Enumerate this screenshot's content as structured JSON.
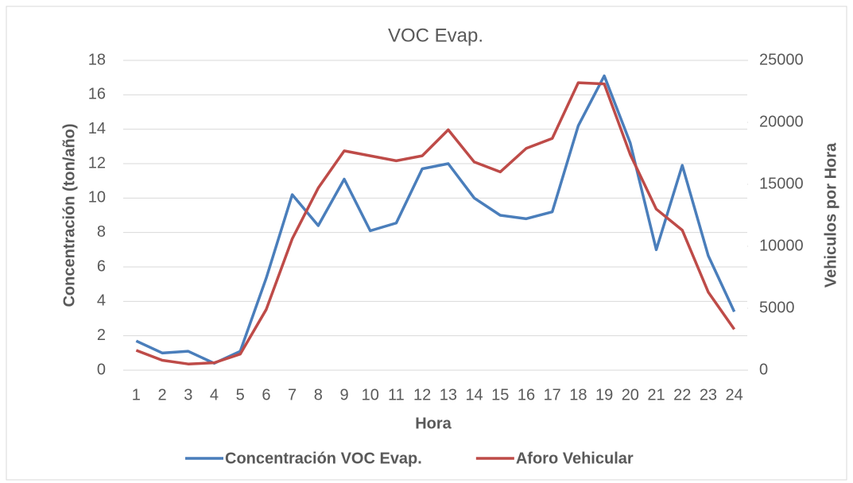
{
  "chart_data": {
    "type": "line",
    "title": "VOC Evap.",
    "x_label": "Hora",
    "y_label": "Concentración (ton/año)",
    "y2_label": "Vehiculos por Hora",
    "categories": [
      "1",
      "2",
      "3",
      "4",
      "5",
      "6",
      "7",
      "8",
      "9",
      "10",
      "11",
      "12",
      "13",
      "14",
      "15",
      "16",
      "17",
      "18",
      "19",
      "20",
      "21",
      "22",
      "23",
      "24"
    ],
    "series": [
      {
        "name": "Concentración VOC Evap.",
        "color": "#4a7ebb",
        "values": [
          1.7,
          1.0,
          1.1,
          0.4,
          1.1,
          5.35,
          10.2,
          8.4,
          11.1,
          8.1,
          8.55,
          11.7,
          12.0,
          10.0,
          9.0,
          8.8,
          9.2,
          14.2,
          17.1,
          13.2,
          7.0,
          11.9,
          6.65,
          3.4
        ]
      },
      {
        "name": "Aforo Vehicular",
        "color": "#be4b48",
        "axis": "y2",
        "values": [
          1600,
          800,
          500,
          600,
          1300,
          4900,
          10600,
          14700,
          17700,
          17300,
          16900,
          17300,
          19400,
          16800,
          16000,
          17900,
          18700,
          23200,
          23100,
          17400,
          13000,
          11300,
          6300,
          3300
        ]
      }
    ],
    "ylim": [
      0,
      18
    ],
    "yticks": [
      0,
      2,
      4,
      6,
      8,
      10,
      12,
      14,
      16,
      18
    ],
    "y2lim": [
      0,
      25000
    ],
    "y2ticks": [
      0,
      5000,
      10000,
      15000,
      20000,
      25000
    ],
    "grid": true,
    "legend": "bottom"
  }
}
